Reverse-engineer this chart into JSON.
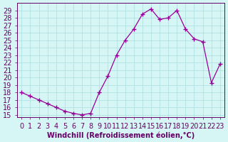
{
  "x": [
    0,
    1,
    2,
    3,
    4,
    5,
    6,
    7,
    8,
    9,
    10,
    11,
    12,
    13,
    14,
    15,
    16,
    17,
    18,
    19,
    20,
    21,
    22,
    23
  ],
  "y": [
    18.0,
    17.5,
    17.0,
    16.5,
    16.0,
    15.5,
    15.2,
    15.0,
    15.2,
    18.0,
    20.2,
    23.0,
    25.0,
    26.5,
    28.5,
    29.2,
    27.8,
    28.0,
    29.0,
    26.5,
    25.2,
    24.8,
    19.3,
    21.8
  ],
  "line_color": "#990099",
  "marker": "+",
  "bg_color": "#d6f5f5",
  "grid_color": "#aadddd",
  "xlabel": "Windchill (Refroidissement éolien,°C)",
  "xlim": [
    -0.5,
    23.5
  ],
  "ylim": [
    14.7,
    30.0
  ],
  "yticks": [
    15,
    16,
    17,
    18,
    19,
    20,
    21,
    22,
    23,
    24,
    25,
    26,
    27,
    28,
    29
  ],
  "xticks": [
    0,
    1,
    2,
    3,
    4,
    5,
    6,
    7,
    8,
    9,
    10,
    11,
    12,
    13,
    14,
    15,
    16,
    17,
    18,
    19,
    20,
    21,
    22,
    23
  ],
  "axis_color": "#660066",
  "font_size": 7
}
